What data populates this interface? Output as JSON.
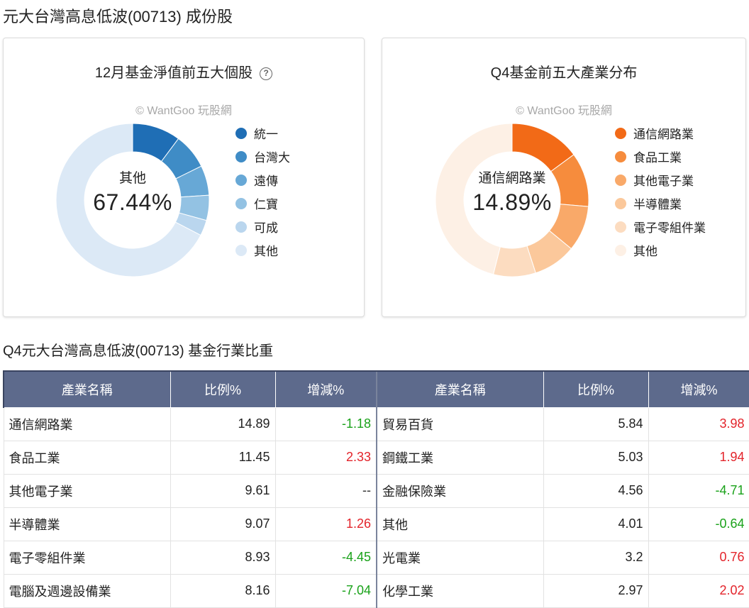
{
  "page": {
    "title": "元大台灣高息低波(00713) 成份股",
    "section_title": "Q4元大台灣高息低波(00713) 基金行業比重"
  },
  "top_stocks": {
    "title": "12月基金淨值前五大個股",
    "help_icon": "question-circle-icon",
    "watermark": "© WantGoo 玩股網",
    "center_label": "其他",
    "center_value": "67.44%",
    "legend": [
      {
        "label": "統一",
        "color": "#1f6eb5"
      },
      {
        "label": "台灣大",
        "color": "#3f8cc6"
      },
      {
        "label": "遠傳",
        "color": "#67a8d6"
      },
      {
        "label": "仁寶",
        "color": "#93c2e3"
      },
      {
        "label": "可成",
        "color": "#bad6ee"
      },
      {
        "label": "其他",
        "color": "#dce9f6"
      }
    ]
  },
  "industry_dist": {
    "title": "Q4基金前五大產業分布",
    "watermark": "© WantGoo 玩股網",
    "center_label": "通信網路業",
    "center_value": "14.89%",
    "legend": [
      {
        "label": "通信網路業",
        "color": "#f26a17"
      },
      {
        "label": "食品工業",
        "color": "#f68c3d"
      },
      {
        "label": "其他電子業",
        "color": "#f9a969"
      },
      {
        "label": "半導體業",
        "color": "#fbc89b"
      },
      {
        "label": "電子零組件業",
        "color": "#fcdcc0"
      },
      {
        "label": "其他",
        "color": "#fdf0e5"
      }
    ]
  },
  "chart_data": [
    {
      "type": "pie",
      "title": "12月基金淨值前五大個股",
      "categories": [
        "統一",
        "台灣大",
        "遠傳",
        "仁寶",
        "可成",
        "其他"
      ],
      "values": [
        10.2,
        7.5,
        6.3,
        5.3,
        3.3,
        67.44
      ],
      "colors": [
        "#1f6eb5",
        "#3f8cc6",
        "#67a8d6",
        "#93c2e3",
        "#bad6ee",
        "#dce9f6"
      ],
      "legend": "right"
    },
    {
      "type": "pie",
      "title": "Q4基金前五大產業分布",
      "categories": [
        "通信網路業",
        "食品工業",
        "其他電子業",
        "半導體業",
        "電子零組件業",
        "其他"
      ],
      "values": [
        14.89,
        11.45,
        9.61,
        9.07,
        8.93,
        46.05
      ],
      "colors": [
        "#f26a17",
        "#f68c3d",
        "#f9a969",
        "#fbc89b",
        "#fcdcc0",
        "#fdf0e5"
      ],
      "legend": "right"
    }
  ],
  "table": {
    "headers": {
      "name": "產業名稱",
      "ratio": "比例%",
      "change": "增減%"
    },
    "rows": [
      {
        "l_name": "通信網路業",
        "l_ratio": "14.89",
        "l_change": "-1.18",
        "l_trend": "neg",
        "r_name": "貿易百貨",
        "r_ratio": "5.84",
        "r_change": "3.98",
        "r_trend": "pos"
      },
      {
        "l_name": "食品工業",
        "l_ratio": "11.45",
        "l_change": "2.33",
        "l_trend": "pos",
        "r_name": "鋼鐵工業",
        "r_ratio": "5.03",
        "r_change": "1.94",
        "r_trend": "pos"
      },
      {
        "l_name": "其他電子業",
        "l_ratio": "9.61",
        "l_change": "--",
        "l_trend": "neutral",
        "r_name": "金融保險業",
        "r_ratio": "4.56",
        "r_change": "-4.71",
        "r_trend": "neg"
      },
      {
        "l_name": "半導體業",
        "l_ratio": "9.07",
        "l_change": "1.26",
        "l_trend": "pos",
        "r_name": "其他",
        "r_ratio": "4.01",
        "r_change": "-0.64",
        "r_trend": "neg"
      },
      {
        "l_name": "電子零組件業",
        "l_ratio": "8.93",
        "l_change": "-4.45",
        "l_trend": "neg",
        "r_name": "光電業",
        "r_ratio": "3.2",
        "r_change": "0.76",
        "r_trend": "pos"
      },
      {
        "l_name": "電腦及週邊設備業",
        "l_ratio": "8.16",
        "l_change": "-7.04",
        "l_trend": "neg",
        "r_name": "化學工業",
        "r_ratio": "2.97",
        "r_change": "2.02",
        "r_trend": "pos"
      }
    ]
  }
}
